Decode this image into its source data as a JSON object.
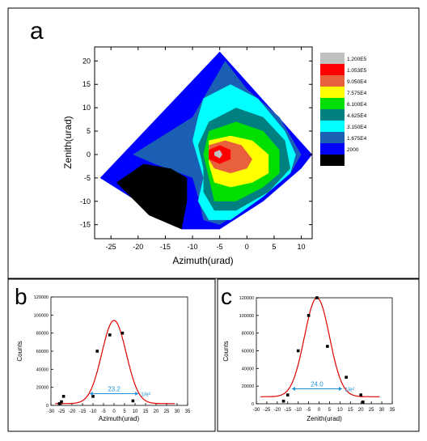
{
  "panel_labels": {
    "a": "a",
    "b": "b",
    "c": "c"
  },
  "chart_data": [
    {
      "id": "a",
      "type": "heatmap",
      "title": "",
      "xlabel": "Azimuth(urad)",
      "ylabel": "Zenith(urad)",
      "xlim": [
        -28,
        12
      ],
      "ylim": [
        -18,
        23
      ],
      "xticks": [
        -25,
        -20,
        -15,
        -10,
        -5,
        0,
        5,
        10
      ],
      "yticks": [
        -15,
        -10,
        -5,
        0,
        5,
        10,
        15,
        20
      ],
      "legend": {
        "placement": "right",
        "levels": [
          {
            "label": "1.200E5",
            "color": "#c0c0c0"
          },
          {
            "label": "1.053E5",
            "color": "#ff0000"
          },
          {
            "label": "9.050E4",
            "color": "#e8603c"
          },
          {
            "label": "7.575E4",
            "color": "#ffff00"
          },
          {
            "label": "6.100E4",
            "color": "#00e000"
          },
          {
            "label": "4.625E4",
            "color": "#008080"
          },
          {
            "label": "3.150E4",
            "color": "#00ffff"
          },
          {
            "label": "1.675E4",
            "color": "#1a5fb4"
          },
          {
            "label": "2000",
            "color": "#0000ff"
          },
          {
            "label": "",
            "color": "#000000"
          }
        ]
      },
      "contours": [
        {
          "level": "2000",
          "color": "#0000ff",
          "points": [
            [
              -5,
              22
            ],
            [
              -27,
              -5
            ],
            [
              -12,
              -16
            ],
            [
              -5,
              -16
            ],
            [
              3,
              -10
            ],
            [
              10,
              -3
            ],
            [
              12,
              0
            ]
          ]
        },
        {
          "level": "1.675E4",
          "color": "#1a5fb4",
          "points": [
            [
              -4,
              20
            ],
            [
              -10,
              8
            ],
            [
              -21,
              0
            ],
            [
              -17,
              -2
            ],
            [
              -10,
              -5
            ],
            [
              -9,
              -9
            ],
            [
              -8,
              -14
            ],
            [
              -5,
              -15
            ],
            [
              3,
              -9
            ],
            [
              8,
              -4
            ],
            [
              10,
              0
            ],
            [
              6,
              8
            ],
            [
              0,
              14
            ]
          ]
        },
        {
          "level": "3.150E4",
          "color": "#00ffff",
          "points": [
            [
              -8,
              12
            ],
            [
              -3,
              15
            ],
            [
              2,
              12
            ],
            [
              7,
              5
            ],
            [
              9,
              0
            ],
            [
              8,
              -4
            ],
            [
              3,
              -9
            ],
            [
              -3,
              -14
            ],
            [
              -7,
              -14
            ],
            [
              -9,
              -10
            ],
            [
              -8,
              -5
            ],
            [
              -9,
              -1
            ],
            [
              -10,
              3
            ],
            [
              -9,
              8
            ]
          ]
        },
        {
          "level": "4.625E4",
          "color": "#008080",
          "points": [
            [
              -7,
              7
            ],
            [
              -2,
              10
            ],
            [
              3,
              8
            ],
            [
              7,
              3
            ],
            [
              8,
              -3
            ],
            [
              4,
              -8
            ],
            [
              -2,
              -12
            ],
            [
              -6,
              -12
            ],
            [
              -8,
              -8
            ],
            [
              -8,
              -3
            ],
            [
              -9,
              2
            ]
          ]
        },
        {
          "level": "6.100E4",
          "color": "#00e000",
          "points": [
            [
              -7,
              5
            ],
            [
              -2,
              7
            ],
            [
              3,
              5
            ],
            [
              6,
              1
            ],
            [
              6,
              -4
            ],
            [
              3,
              -7
            ],
            [
              -2,
              -10
            ],
            [
              -6,
              -10
            ],
            [
              -7,
              -5
            ],
            [
              -8,
              0
            ]
          ]
        },
        {
          "level": "7.575E4",
          "color": "#ffff00",
          "points": [
            [
              -7,
              3
            ],
            [
              -3,
              4
            ],
            [
              1,
              3
            ],
            [
              4,
              0
            ],
            [
              4,
              -4
            ],
            [
              1,
              -6
            ],
            [
              -3,
              -7
            ],
            [
              -6,
              -6
            ],
            [
              -7,
              -2
            ]
          ]
        },
        {
          "level": "9.050E4",
          "color": "#e8603c",
          "points": [
            [
              -7,
              2
            ],
            [
              -4,
              3
            ],
            [
              -1,
              2
            ],
            [
              1,
              -1
            ],
            [
              0,
              -3
            ],
            [
              -3,
              -4
            ],
            [
              -6,
              -3
            ],
            [
              -7,
              -1
            ]
          ]
        },
        {
          "level": "1.053E5",
          "color": "#ff0000",
          "points": [
            [
              -7,
              1
            ],
            [
              -5,
              2
            ],
            [
              -3,
              1
            ],
            [
              -3,
              -1
            ],
            [
              -5,
              -2
            ],
            [
              -7,
              -1
            ]
          ]
        },
        {
          "level": "1.200E5",
          "color": "#c0c0c0",
          "points": [
            [
              -6,
              0.5
            ],
            [
              -5,
              1
            ],
            [
              -4.5,
              0
            ],
            [
              -5,
              -0.8
            ],
            [
              -6,
              -0.2
            ]
          ]
        },
        {
          "level": "",
          "color": "#000000",
          "points": [
            [
              -24,
              -6
            ],
            [
              -19,
              -2
            ],
            [
              -14,
              -3
            ],
            [
              -11,
              -5
            ],
            [
              -11,
              -10
            ],
            [
              -12,
              -16
            ],
            [
              -18,
              -13
            ]
          ]
        }
      ]
    },
    {
      "id": "b",
      "type": "scatter",
      "title": "",
      "xlabel": "Azimuth(urad)",
      "ylabel": "Counts",
      "xlim": [
        -30,
        35
      ],
      "ylim": [
        0,
        120000
      ],
      "xticks": [
        -30,
        -25,
        -20,
        -15,
        -10,
        -5,
        0,
        5,
        10,
        15,
        20,
        25,
        30,
        35
      ],
      "yticks": [
        0,
        20000,
        40000,
        60000,
        80000,
        100000,
        120000
      ],
      "points": [
        [
          -26,
          2000
        ],
        [
          -25,
          4000
        ],
        [
          -24,
          10000
        ],
        [
          -10,
          10000
        ],
        [
          -8,
          60000
        ],
        [
          -2,
          78000
        ],
        [
          4,
          80000
        ],
        [
          9,
          5000
        ]
      ],
      "fit": {
        "type": "gaussian",
        "baseline": 2000,
        "amplitude": 92000,
        "center": 0,
        "width_1e2": 23.2
      },
      "annotation": {
        "width": "23.2",
        "label": "1/e²",
        "y": 13000,
        "x1": -11.6,
        "x2": 11.6
      }
    },
    {
      "id": "c",
      "type": "scatter",
      "title": "",
      "xlabel": "Zenith(urad)",
      "ylabel": "Counts",
      "xlim": [
        -30,
        35
      ],
      "ylim": [
        0,
        120000
      ],
      "xticks": [
        -30,
        -25,
        -20,
        -15,
        -10,
        -5,
        0,
        5,
        10,
        15,
        20,
        25,
        30,
        35
      ],
      "yticks": [
        0,
        20000,
        40000,
        60000,
        80000,
        100000,
        120000
      ],
      "points": [
        [
          -17,
          3000
        ],
        [
          -15,
          10000
        ],
        [
          -10,
          60000
        ],
        [
          -5,
          100000
        ],
        [
          -1,
          120000
        ],
        [
          4,
          65000
        ],
        [
          13,
          30000
        ],
        [
          20,
          10000
        ],
        [
          21,
          2000
        ]
      ],
      "fit": {
        "type": "gaussian",
        "baseline": 8000,
        "amplitude": 112000,
        "center": -1,
        "width_1e2": 24.0
      },
      "annotation": {
        "width": "24.0",
        "label": "1/e²",
        "y": 17000,
        "x1": -13,
        "x2": 11
      }
    }
  ]
}
